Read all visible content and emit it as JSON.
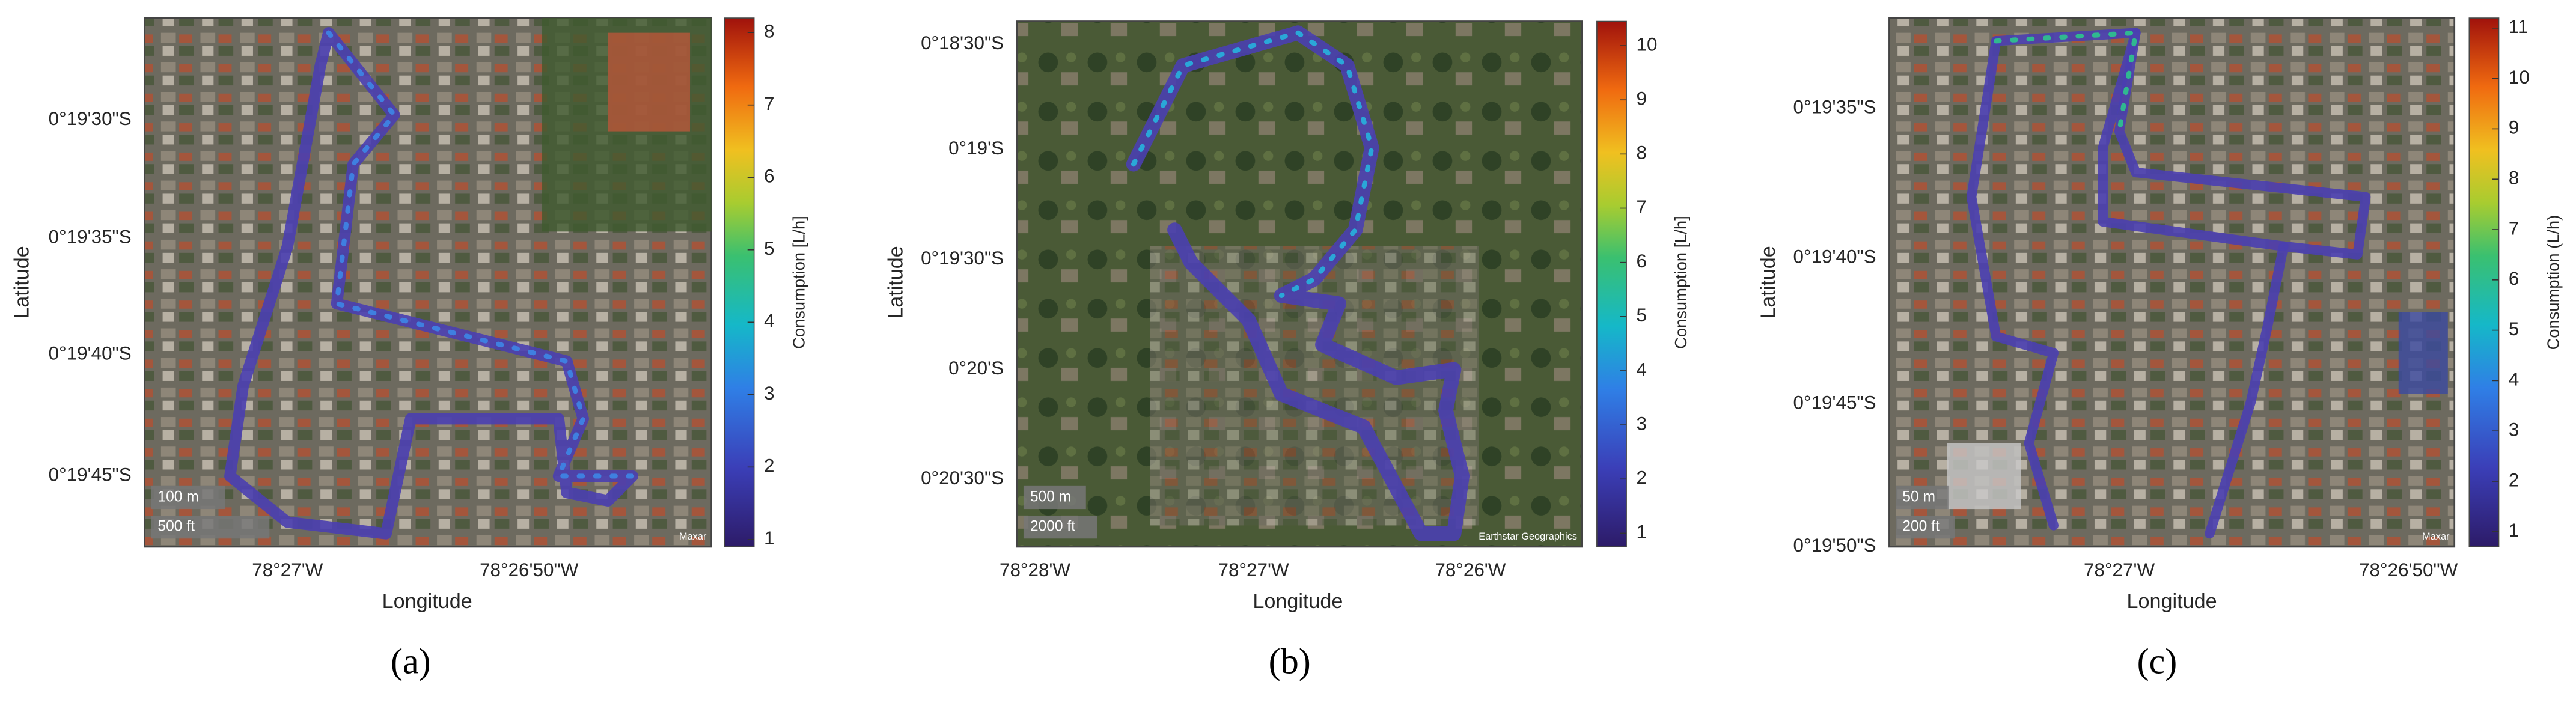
{
  "panels": [
    {
      "label": "(a)",
      "xlabel": "Longitude",
      "ylabel": "Latitude",
      "yticks": [
        "0°19'30\"S",
        "0°19'35\"S",
        "0°19'40\"S",
        "0°19'45\"S"
      ],
      "xticks": [
        "78°27'W",
        "78°26'50\"W"
      ],
      "scale": [
        "100 m",
        "500 ft"
      ],
      "attribution": "Maxar",
      "colorbar": {
        "label": "Consumption [L/h]",
        "lim": [
          0.9,
          8.2
        ],
        "ticks": [
          1,
          2,
          3,
          4,
          5,
          6,
          7,
          8
        ]
      }
    },
    {
      "label": "(b)",
      "xlabel": "Longitude",
      "ylabel": "Latitude",
      "yticks": [
        "0°18'30\"S",
        "0°19'S",
        "0°19'30\"S",
        "0°20'S",
        "0°20'30\"S"
      ],
      "xticks": [
        "78°28'W",
        "78°27'W",
        "78°26'W"
      ],
      "scale": [
        "500 m",
        "2000 ft"
      ],
      "attribution": "Earthstar Geographics",
      "colorbar": {
        "label": "Consumption [L/h]",
        "lim": [
          0.75,
          10.45
        ],
        "ticks": [
          1,
          2,
          3,
          4,
          5,
          6,
          7,
          8,
          9,
          10
        ]
      }
    },
    {
      "label": "(c)",
      "xlabel": "Longitude",
      "ylabel": "Latitude",
      "yticks": [
        "0°19'35\"S",
        "0°19'40\"S",
        "0°19'45\"S",
        "0°19'50\"S"
      ],
      "xticks": [
        "78°27'W",
        "78°26'50\"W"
      ],
      "scale": [
        "50 m",
        "200 ft"
      ],
      "attribution": "Maxar",
      "colorbar": {
        "label": "Consumption (L/h)",
        "lim": [
          0.7,
          11.2
        ],
        "ticks": [
          1,
          2,
          3,
          4,
          5,
          6,
          7,
          8,
          9,
          10,
          11
        ]
      }
    }
  ]
}
